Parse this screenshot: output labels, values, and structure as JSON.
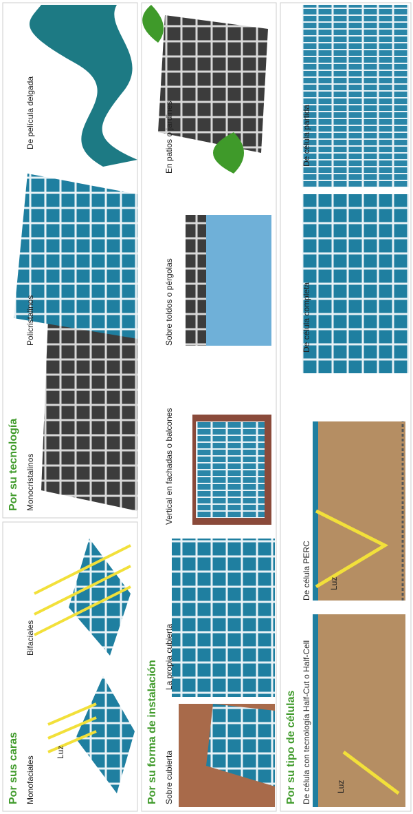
{
  "sections": [
    {
      "title": "Por sus caras",
      "items": [
        {
          "label": "Monofaciales"
        },
        {
          "label": "Bifaciales"
        }
      ],
      "light": "Luz"
    },
    {
      "title": "Por su tecnología",
      "items": [
        {
          "label": "Monocristalinos"
        },
        {
          "label": "Policristalinos"
        },
        {
          "label": "De película delgada"
        }
      ]
    },
    {
      "title": "Por su forma de instalación",
      "items": [
        {
          "label": "Sobre cubierta"
        },
        {
          "label": "La propia cubierta"
        },
        {
          "label": "Vertical en fachadas o balcones"
        },
        {
          "label": "Sobre toldos o pérgolas"
        },
        {
          "label": "En patios o jardines"
        }
      ]
    },
    {
      "title": "Por su tipo de células",
      "items": [
        {
          "label": "De célula con tecnología Half-Cut o Half-Cell"
        },
        {
          "label": "De célula PERC"
        },
        {
          "label": "De célula completa"
        },
        {
          "label": "De célula partida"
        }
      ],
      "lights": [
        "Luz",
        "Luz"
      ]
    }
  ]
}
